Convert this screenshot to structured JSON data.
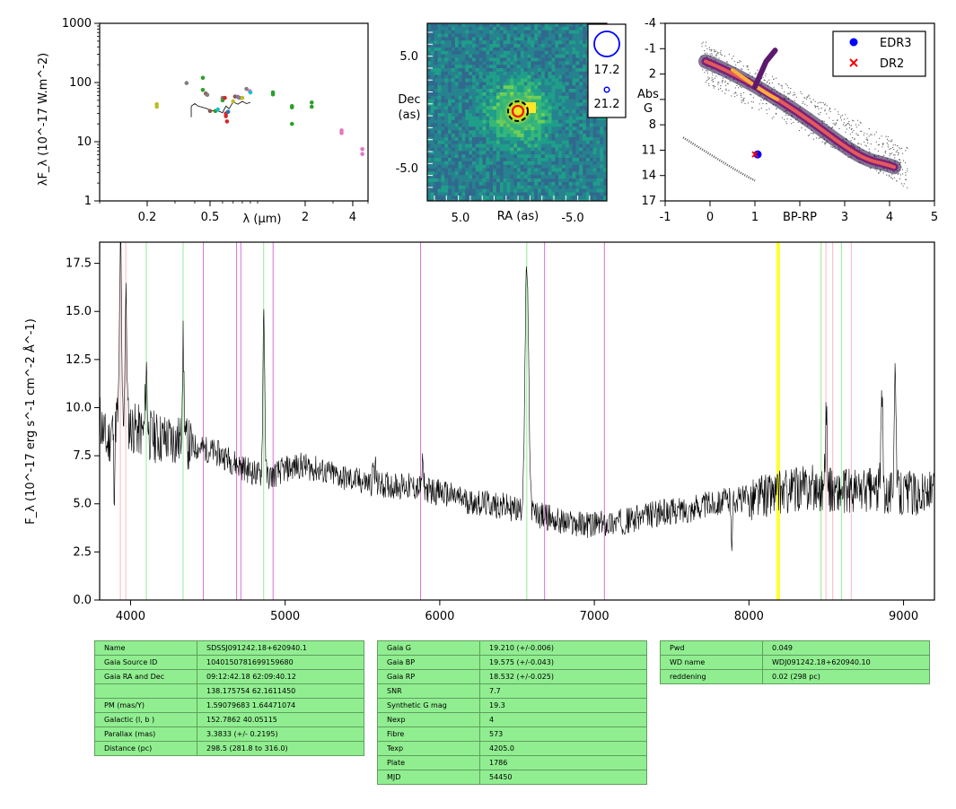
{
  "chart_data": [
    {
      "type": "scatter",
      "panel": "sed",
      "xscale": "log",
      "yscale": "log",
      "xlabel": "λ (μm)",
      "ylabel": "λF_λ (10^-17 W.m^-2)",
      "xlim": [
        0.1,
        5.0
      ],
      "ylim": [
        1,
        1000
      ],
      "xticks": [
        0.2,
        0.5,
        2,
        4
      ],
      "xtick_labels": [
        "0.2",
        "0.5",
        "2",
        "4"
      ],
      "yticks": [
        1,
        10,
        100,
        1000
      ],
      "ytick_labels": [
        "1",
        "10",
        "100",
        "1000"
      ],
      "points": [
        {
          "x": 0.23,
          "y": 43,
          "color": "#bcbd22"
        },
        {
          "x": 0.23,
          "y": 39,
          "color": "#bcbd22"
        },
        {
          "x": 0.355,
          "y": 98,
          "color": "#7f7f7f"
        },
        {
          "x": 0.45,
          "y": 120,
          "color": "#2ca02c"
        },
        {
          "x": 0.45,
          "y": 75,
          "color": "#2ca02c"
        },
        {
          "x": 0.47,
          "y": 65,
          "color": "#8c564b"
        },
        {
          "x": 0.48,
          "y": 62,
          "color": "#7f7f7f"
        },
        {
          "x": 0.5,
          "y": 33,
          "color": "#8c564b"
        },
        {
          "x": 0.54,
          "y": 33,
          "color": "#2ca02c"
        },
        {
          "x": 0.56,
          "y": 35,
          "color": "#17becf"
        },
        {
          "x": 0.6,
          "y": 55,
          "color": "#7f7f7f"
        },
        {
          "x": 0.6,
          "y": 50,
          "color": "#2ca02c"
        },
        {
          "x": 0.62,
          "y": 55,
          "color": "#d62728"
        },
        {
          "x": 0.63,
          "y": 30,
          "color": "#d62728"
        },
        {
          "x": 0.63,
          "y": 27,
          "color": "#d62728"
        },
        {
          "x": 0.64,
          "y": 22,
          "color": "#d62728"
        },
        {
          "x": 0.65,
          "y": 32,
          "color": "#1f77b4"
        },
        {
          "x": 0.7,
          "y": 48,
          "color": "#bcbd22"
        },
        {
          "x": 0.72,
          "y": 58,
          "color": "#8c564b"
        },
        {
          "x": 0.75,
          "y": 57,
          "color": "#9467bd"
        },
        {
          "x": 0.77,
          "y": 55,
          "color": "#7f7f7f"
        },
        {
          "x": 0.8,
          "y": 55,
          "color": "#bcbd22"
        },
        {
          "x": 0.85,
          "y": 78,
          "color": "#7f7f7f"
        },
        {
          "x": 0.89,
          "y": 72,
          "color": "#e377c2"
        },
        {
          "x": 0.9,
          "y": 68,
          "color": "#17becf"
        },
        {
          "x": 1.25,
          "y": 68,
          "color": "#2ca02c"
        },
        {
          "x": 1.25,
          "y": 63,
          "color": "#2ca02c"
        },
        {
          "x": 1.65,
          "y": 40,
          "color": "#2ca02c"
        },
        {
          "x": 1.65,
          "y": 38,
          "color": "#2ca02c"
        },
        {
          "x": 1.65,
          "y": 20,
          "color": "#2ca02c"
        },
        {
          "x": 2.2,
          "y": 46,
          "color": "#2ca02c"
        },
        {
          "x": 2.2,
          "y": 39,
          "color": "#2ca02c"
        },
        {
          "x": 3.4,
          "y": 15.5,
          "color": "#e377c2"
        },
        {
          "x": 3.4,
          "y": 14,
          "color": "#e377c2"
        },
        {
          "x": 4.6,
          "y": 7.5,
          "color": "#e377c2"
        },
        {
          "x": 4.6,
          "y": 6.2,
          "color": "#e377c2"
        }
      ],
      "spectrum_line": {
        "x": [
          0.38,
          0.4,
          0.42,
          0.45,
          0.48,
          0.5,
          0.53,
          0.56,
          0.6,
          0.63,
          0.66,
          0.7,
          0.75,
          0.8,
          0.85,
          0.9
        ],
        "y": [
          40,
          44,
          40,
          38,
          36,
          34,
          33,
          33,
          31,
          40,
          36,
          47,
          43,
          48,
          44,
          46
        ]
      }
    },
    {
      "type": "heatmap",
      "panel": "image",
      "xlabel": "RA (as)",
      "ylabel": "Dec (as)",
      "xlim": [
        8.0,
        -8.0
      ],
      "ylim": [
        -8.0,
        8.0
      ],
      "xtick_labels": [
        "5.0",
        "-5.0"
      ],
      "ytick_labels": [
        "5.0",
        "-5.0"
      ],
      "legend": [
        {
          "label": "17.2",
          "marker": "large-circle",
          "color": "#0000ff"
        },
        {
          "label": "21.2",
          "marker": "small-circle",
          "color": "#0000ff"
        }
      ],
      "source_center": [
        0.0,
        0.0
      ]
    },
    {
      "type": "scatter",
      "panel": "hr-diagram",
      "xlabel": "BP-RP",
      "ylabel": "Abs G",
      "xlim": [
        -1,
        5
      ],
      "ylim": [
        17,
        -4
      ],
      "xticks": [
        -1,
        0,
        1,
        2,
        3,
        4,
        5
      ],
      "xtick_labels": [
        "-1",
        "0",
        "1",
        "BP-RP",
        "3",
        "4",
        "5"
      ],
      "yticks": [
        -4,
        -1,
        2,
        5,
        8,
        11,
        14,
        17
      ],
      "ytick_labels": [
        "-4",
        "-1",
        "2",
        "Abs G",
        "8",
        "11",
        "14",
        "17"
      ],
      "legend_position": "top-right",
      "series": [
        {
          "name": "EDR3",
          "marker": "o",
          "color": "#0000ff",
          "x": [
            1.06
          ],
          "y": [
            11.5
          ]
        },
        {
          "name": "DR2",
          "marker": "x",
          "color": "#ff0000",
          "x": [
            1.0
          ],
          "y": [
            11.5
          ]
        }
      ]
    },
    {
      "type": "line",
      "panel": "spectrum",
      "xlabel": "",
      "ylabel": "F_λ (10^-17 erg s^-1 cm^-2 Å^-1)",
      "xlim": [
        3800,
        9200
      ],
      "ylim": [
        0,
        18.6
      ],
      "xticks": [
        4000,
        5000,
        6000,
        7000,
        8000,
        9000
      ],
      "yticks": [
        0.0,
        2.5,
        5.0,
        7.5,
        10.0,
        12.5,
        15.0,
        17.5
      ],
      "ytick_labels": [
        "0.0",
        "2.5",
        "5.0",
        "7.5",
        "10.0",
        "12.5",
        "15.0",
        "17.5"
      ],
      "continuum": {
        "x": [
          3800,
          3850,
          3900,
          3950,
          4000,
          4100,
          4200,
          4300,
          4400,
          4500,
          4600,
          4700,
          4800,
          4900,
          5000,
          5100,
          5200,
          5400,
          5600,
          5800,
          6000,
          6200,
          6400,
          6500,
          6600,
          6700,
          6800,
          7000,
          7200,
          7400,
          7600,
          7800,
          8000,
          8200,
          8400,
          8600,
          8800,
          9000,
          9200
        ],
        "y": [
          9.5,
          8.0,
          9.5,
          9.5,
          9.0,
          8.6,
          8.4,
          8.3,
          8.0,
          7.8,
          7.5,
          7.0,
          6.6,
          6.4,
          6.8,
          7.0,
          6.8,
          6.3,
          6.0,
          5.9,
          5.6,
          5.1,
          4.9,
          4.7,
          4.5,
          4.3,
          4.0,
          3.9,
          4.1,
          4.5,
          4.7,
          5.1,
          5.3,
          5.6,
          5.9,
          5.6,
          5.7,
          5.6,
          5.5
        ]
      },
      "emission_peaks": [
        {
          "x": 3935,
          "y": 18.5
        },
        {
          "x": 3970,
          "y": 15.5
        },
        {
          "x": 4102,
          "y": 12.0
        },
        {
          "x": 4340,
          "y": 13.2
        },
        {
          "x": 4862,
          "y": 15.1
        },
        {
          "x": 5577,
          "y": 9.3
        },
        {
          "x": 5890,
          "y": 7.0
        },
        {
          "x": 6563,
          "y": 17.2
        },
        {
          "x": 8500,
          "y": 10.0
        },
        {
          "x": 8860,
          "y": 10.6
        },
        {
          "x": 8945,
          "y": 12.3
        }
      ],
      "absorption_dips": [
        {
          "x": 3895,
          "y": 6.0
        },
        {
          "x": 5577,
          "y": 2.9
        },
        {
          "x": 7890,
          "y": 2.9
        }
      ],
      "reference_lines": [
        {
          "x": 3934,
          "color": "#ffb6c1"
        },
        {
          "x": 3969,
          "color": "#ffb6c1"
        },
        {
          "x": 4102,
          "color": "#90ee90"
        },
        {
          "x": 4340,
          "color": "#90ee90"
        },
        {
          "x": 4471,
          "color": "#da70d6"
        },
        {
          "x": 4686,
          "color": "#da70d6"
        },
        {
          "x": 4713,
          "color": "#da70d6"
        },
        {
          "x": 4861,
          "color": "#90ee90"
        },
        {
          "x": 4922,
          "color": "#da70d6"
        },
        {
          "x": 5876,
          "color": "#da70d6"
        },
        {
          "x": 6563,
          "color": "#90ee90"
        },
        {
          "x": 6678,
          "color": "#da70d6"
        },
        {
          "x": 7065,
          "color": "#da70d6"
        },
        {
          "x": 8183,
          "color": "#ffff00"
        },
        {
          "x": 8195,
          "color": "#ffff00"
        },
        {
          "x": 8467,
          "color": "#90ee90"
        },
        {
          "x": 8498,
          "color": "#ffb6c1"
        },
        {
          "x": 8542,
          "color": "#ffb6c1"
        },
        {
          "x": 8598,
          "color": "#90ee90"
        },
        {
          "x": 8662,
          "color": "#ffb6c1"
        }
      ]
    }
  ],
  "tables": {
    "identity": [
      {
        "label": "Name",
        "value": "SDSSJ091242.18+620940.1"
      },
      {
        "label": "Gaia Source ID",
        "value": "1040150781699159680"
      },
      {
        "label": "Gaia RA and Dec",
        "value": "09:12:42.18    62:09:40.12"
      },
      {
        "label": "",
        "value": "138.175754    62.1611450"
      },
      {
        "label": "PM (mas/Y)",
        "value": "1.59079683    1.64471074"
      },
      {
        "label": "Galactic (l, b )",
        "value": "152.7862    40.05115"
      },
      {
        "label": "Parallax (mas)",
        "value": "3.3833 (+/- 0.2195)"
      },
      {
        "label": "Distance (pc)",
        "value": "298.5 (281.8 to 316.0)"
      }
    ],
    "photometry": [
      {
        "label": "Gaia G",
        "value": "19.210 (+/-0.006)"
      },
      {
        "label": "Gaia BP",
        "value": "19.575 (+/-0.043)"
      },
      {
        "label": "Gaia RP",
        "value": "18.532 (+/-0.025)"
      },
      {
        "label": "SNR",
        "value": "7.7"
      },
      {
        "label": "Synthetic G mag",
        "value": "19.3"
      },
      {
        "label": "Nexp",
        "value": "4"
      },
      {
        "label": "Fibre",
        "value": "573"
      },
      {
        "label": "Texp",
        "value": "4205.0"
      },
      {
        "label": "Plate",
        "value": "1786"
      },
      {
        "label": "MJD",
        "value": "54450"
      }
    ],
    "extra": [
      {
        "label": "Pwd",
        "value": "0.049"
      },
      {
        "label": "WD name",
        "value": "WDJ091242.18+620940.10"
      },
      {
        "label": "reddening",
        "value": "0.02 (298 pc)"
      }
    ]
  }
}
